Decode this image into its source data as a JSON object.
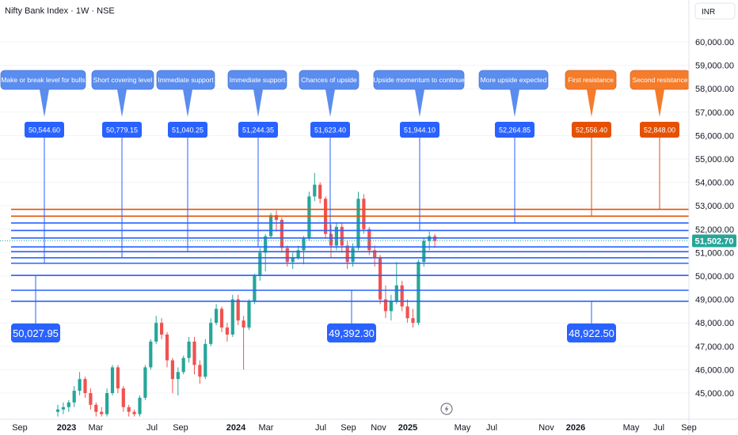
{
  "header": {
    "title": "Nifty Bank Index · 1W · NSE",
    "currency": "INR"
  },
  "colors": {
    "support_line": "#2962ff",
    "resistance_line": "#e65100",
    "callout_blue": "#5b8def",
    "callout_orange": "#f57c2a",
    "up_candle": "#26a69a",
    "down_candle": "#ef5350",
    "last_price": "#26a69a"
  },
  "chart_data": {
    "type": "candlestick",
    "title": "Nifty Bank Index · 1W · NSE",
    "y_axis": {
      "ticks": [
        "45,000.00",
        "46,000.00",
        "47,000.00",
        "48,000.00",
        "49,000.00",
        "50,000.00",
        "51,000.00",
        "52,000.00",
        "53,000.00",
        "54,000.00",
        "55,000.00",
        "56,000.00",
        "57,000.00",
        "58,000.00",
        "59,000.00",
        "60,000.00"
      ],
      "range": [
        44300,
        60800
      ]
    },
    "x_axis": {
      "ticks": [
        {
          "label": "Sep",
          "bold": false
        },
        {
          "label": "2023",
          "bold": true
        },
        {
          "label": "Mar",
          "bold": false
        },
        {
          "label": "Jul",
          "bold": false
        },
        {
          "label": "Sep",
          "bold": false
        },
        {
          "label": "2024",
          "bold": true
        },
        {
          "label": "Mar",
          "bold": false
        },
        {
          "label": "Jul",
          "bold": false
        },
        {
          "label": "Sep",
          "bold": false
        },
        {
          "label": "Nov",
          "bold": false
        },
        {
          "label": "2025",
          "bold": true
        },
        {
          "label": "May",
          "bold": false
        },
        {
          "label": "Jul",
          "bold": false
        },
        {
          "label": "Nov",
          "bold": false
        },
        {
          "label": "2026",
          "bold": true
        },
        {
          "label": "May",
          "bold": false
        },
        {
          "label": "Jul",
          "bold": false
        },
        {
          "label": "Sep",
          "bold": false
        }
      ]
    },
    "last_price": "51,502.70",
    "callouts": [
      {
        "label": "Make or break level for bulls",
        "value": "50,544.60",
        "level": 50544.6,
        "kind": "support"
      },
      {
        "label": "Short covering level",
        "value": "50,779.15",
        "level": 50779.15,
        "kind": "support"
      },
      {
        "label": "Immediate support",
        "value": "51,040.25",
        "level": 51040.25,
        "kind": "support"
      },
      {
        "label": "Immediate support",
        "value": "51,244.35",
        "level": 51244.35,
        "kind": "support"
      },
      {
        "label": "Chances of upside",
        "value": "51,623.40",
        "level": 51623.4,
        "kind": "support"
      },
      {
        "label": "Upside momentum to continue",
        "value": "51,944.10",
        "level": 51944.1,
        "kind": "support"
      },
      {
        "label": "More upside expected",
        "value": "52,264.85",
        "level": 52264.85,
        "kind": "support"
      },
      {
        "label": "First resistance",
        "value": "52,556.40",
        "level": 52556.4,
        "kind": "resistance"
      },
      {
        "label": "Second resistance",
        "value": "52,848.00",
        "level": 52848.0,
        "kind": "resistance"
      }
    ],
    "lower_labels": [
      {
        "value": "50,027.95",
        "level": 50027.95
      },
      {
        "value": "49,392.30",
        "level": 49392.3
      },
      {
        "value": "48,922.50",
        "level": 48922.5
      }
    ],
    "candles": [
      {
        "o": 44200,
        "h": 44500,
        "l": 44000,
        "c": 44300
      },
      {
        "o": 44300,
        "h": 44600,
        "l": 44100,
        "c": 44400
      },
      {
        "o": 44400,
        "h": 44700,
        "l": 44200,
        "c": 44600
      },
      {
        "o": 44600,
        "h": 45300,
        "l": 44400,
        "c": 45100
      },
      {
        "o": 45100,
        "h": 45900,
        "l": 44900,
        "c": 45600
      },
      {
        "o": 45600,
        "h": 45700,
        "l": 44800,
        "c": 45000
      },
      {
        "o": 45000,
        "h": 45200,
        "l": 44300,
        "c": 44500
      },
      {
        "o": 44500,
        "h": 44600,
        "l": 44000,
        "c": 44200
      },
      {
        "o": 44200,
        "h": 44400,
        "l": 44000,
        "c": 44100
      },
      {
        "o": 44100,
        "h": 45200,
        "l": 44000,
        "c": 45000
      },
      {
        "o": 45000,
        "h": 46200,
        "l": 44900,
        "c": 46100
      },
      {
        "o": 46100,
        "h": 46200,
        "l": 45000,
        "c": 45200
      },
      {
        "o": 45200,
        "h": 45300,
        "l": 44200,
        "c": 44400
      },
      {
        "o": 44400,
        "h": 44500,
        "l": 44000,
        "c": 44200
      },
      {
        "o": 44200,
        "h": 44300,
        "l": 44000,
        "c": 44100
      },
      {
        "o": 44100,
        "h": 44900,
        "l": 44000,
        "c": 44800
      },
      {
        "o": 44800,
        "h": 46200,
        "l": 44700,
        "c": 46100
      },
      {
        "o": 46100,
        "h": 47300,
        "l": 46000,
        "c": 47200
      },
      {
        "o": 47200,
        "h": 48300,
        "l": 47100,
        "c": 48000
      },
      {
        "o": 48000,
        "h": 48200,
        "l": 47300,
        "c": 47500
      },
      {
        "o": 47500,
        "h": 47600,
        "l": 46100,
        "c": 46400
      },
      {
        "o": 46400,
        "h": 46500,
        "l": 45000,
        "c": 45600
      },
      {
        "o": 45600,
        "h": 46100,
        "l": 44900,
        "c": 45900
      },
      {
        "o": 45900,
        "h": 46600,
        "l": 45800,
        "c": 46500
      },
      {
        "o": 46500,
        "h": 47400,
        "l": 46300,
        "c": 47200
      },
      {
        "o": 47200,
        "h": 47400,
        "l": 45800,
        "c": 46200
      },
      {
        "o": 46200,
        "h": 46400,
        "l": 45400,
        "c": 45700
      },
      {
        "o": 45700,
        "h": 47300,
        "l": 45600,
        "c": 47100
      },
      {
        "o": 47100,
        "h": 48200,
        "l": 47000,
        "c": 48000
      },
      {
        "o": 48000,
        "h": 48800,
        "l": 47900,
        "c": 48600
      },
      {
        "o": 48600,
        "h": 48700,
        "l": 47600,
        "c": 47800
      },
      {
        "o": 47800,
        "h": 48000,
        "l": 47200,
        "c": 47500
      },
      {
        "o": 47500,
        "h": 49200,
        "l": 47400,
        "c": 49000
      },
      {
        "o": 49000,
        "h": 49200,
        "l": 47900,
        "c": 48100
      },
      {
        "o": 48100,
        "h": 48300,
        "l": 46000,
        "c": 47800
      },
      {
        "o": 47800,
        "h": 49000,
        "l": 47700,
        "c": 48900
      },
      {
        "o": 48900,
        "h": 50100,
        "l": 48800,
        "c": 50000
      },
      {
        "o": 50000,
        "h": 51200,
        "l": 49800,
        "c": 51000
      },
      {
        "o": 51000,
        "h": 51800,
        "l": 50200,
        "c": 51700
      },
      {
        "o": 51700,
        "h": 52700,
        "l": 51600,
        "c": 52600
      },
      {
        "o": 52600,
        "h": 52800,
        "l": 51900,
        "c": 52400
      },
      {
        "o": 52400,
        "h": 52500,
        "l": 51000,
        "c": 51200
      },
      {
        "o": 51200,
        "h": 51300,
        "l": 50400,
        "c": 50600
      },
      {
        "o": 50600,
        "h": 51000,
        "l": 50300,
        "c": 50800
      },
      {
        "o": 50800,
        "h": 51300,
        "l": 50700,
        "c": 51100
      },
      {
        "o": 51100,
        "h": 51700,
        "l": 50500,
        "c": 51600
      },
      {
        "o": 51600,
        "h": 53600,
        "l": 51500,
        "c": 53400
      },
      {
        "o": 53400,
        "h": 54400,
        "l": 53200,
        "c": 53900
      },
      {
        "o": 53900,
        "h": 54000,
        "l": 53100,
        "c": 53300
      },
      {
        "o": 53300,
        "h": 53400,
        "l": 51600,
        "c": 51800
      },
      {
        "o": 51800,
        "h": 52200,
        "l": 50800,
        "c": 51300
      },
      {
        "o": 51300,
        "h": 52300,
        "l": 51100,
        "c": 52100
      },
      {
        "o": 52100,
        "h": 52300,
        "l": 51000,
        "c": 51300
      },
      {
        "o": 51300,
        "h": 51500,
        "l": 50300,
        "c": 50600
      },
      {
        "o": 50600,
        "h": 51400,
        "l": 50400,
        "c": 51200
      },
      {
        "o": 51200,
        "h": 53600,
        "l": 51100,
        "c": 53300
      },
      {
        "o": 53300,
        "h": 53500,
        "l": 51800,
        "c": 52000
      },
      {
        "o": 52000,
        "h": 52100,
        "l": 50900,
        "c": 51100
      },
      {
        "o": 51100,
        "h": 51300,
        "l": 50400,
        "c": 50800
      },
      {
        "o": 50800,
        "h": 50900,
        "l": 48800,
        "c": 49000
      },
      {
        "o": 49000,
        "h": 49600,
        "l": 48200,
        "c": 48500
      },
      {
        "o": 48500,
        "h": 49200,
        "l": 48100,
        "c": 48900
      },
      {
        "o": 48900,
        "h": 50600,
        "l": 48800,
        "c": 49600
      },
      {
        "o": 49600,
        "h": 49800,
        "l": 48500,
        "c": 48700
      },
      {
        "o": 48700,
        "h": 49000,
        "l": 48000,
        "c": 48200
      },
      {
        "o": 48200,
        "h": 48600,
        "l": 47800,
        "c": 48000
      },
      {
        "o": 48000,
        "h": 50700,
        "l": 47900,
        "c": 50600
      },
      {
        "o": 50600,
        "h": 51600,
        "l": 50400,
        "c": 51500
      },
      {
        "o": 51500,
        "h": 51900,
        "l": 51100,
        "c": 51700
      },
      {
        "o": 51700,
        "h": 51800,
        "l": 51200,
        "c": 51500
      }
    ]
  }
}
